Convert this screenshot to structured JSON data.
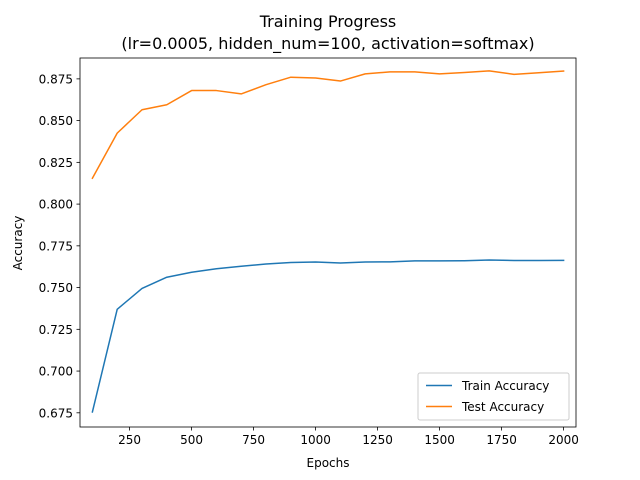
{
  "chart_data": {
    "type": "line",
    "title": "Training Progress",
    "subtitle": "(lr=0.0005, hidden_num=100, activation=softmax)",
    "xlabel": "Epochs",
    "ylabel": "Accuracy",
    "xlim": [
      50,
      2050
    ],
    "ylim": [
      0.6665,
      0.8875
    ],
    "xticks": [
      250,
      500,
      750,
      1000,
      1250,
      1500,
      1750,
      2000
    ],
    "yticks": [
      0.675,
      0.7,
      0.725,
      0.75,
      0.775,
      0.8,
      0.825,
      0.85,
      0.875
    ],
    "ytick_labels": [
      "0.675",
      "0.700",
      "0.725",
      "0.750",
      "0.775",
      "0.800",
      "0.825",
      "0.850",
      "0.875"
    ],
    "grid": false,
    "legend_position": "lower-right",
    "x": [
      100,
      200,
      300,
      400,
      500,
      600,
      700,
      800,
      900,
      1000,
      1100,
      1200,
      1300,
      1400,
      1500,
      1600,
      1700,
      1800,
      1900,
      2000
    ],
    "series": [
      {
        "name": "Train Accuracy",
        "color": "#1f77b4",
        "values": [
          0.6755,
          0.737,
          0.7495,
          0.7562,
          0.7592,
          0.7613,
          0.7628,
          0.7641,
          0.765,
          0.7653,
          0.7647,
          0.7653,
          0.7654,
          0.766,
          0.766,
          0.7661,
          0.7665,
          0.7662,
          0.7662,
          0.7663
        ]
      },
      {
        "name": "Test Accuracy",
        "color": "#ff7f0e",
        "values": [
          0.8155,
          0.8425,
          0.8565,
          0.8595,
          0.868,
          0.868,
          0.866,
          0.8715,
          0.876,
          0.8755,
          0.8737,
          0.878,
          0.8792,
          0.8792,
          0.878,
          0.8788,
          0.8798,
          0.8777,
          0.8787,
          0.8797
        ]
      }
    ]
  }
}
